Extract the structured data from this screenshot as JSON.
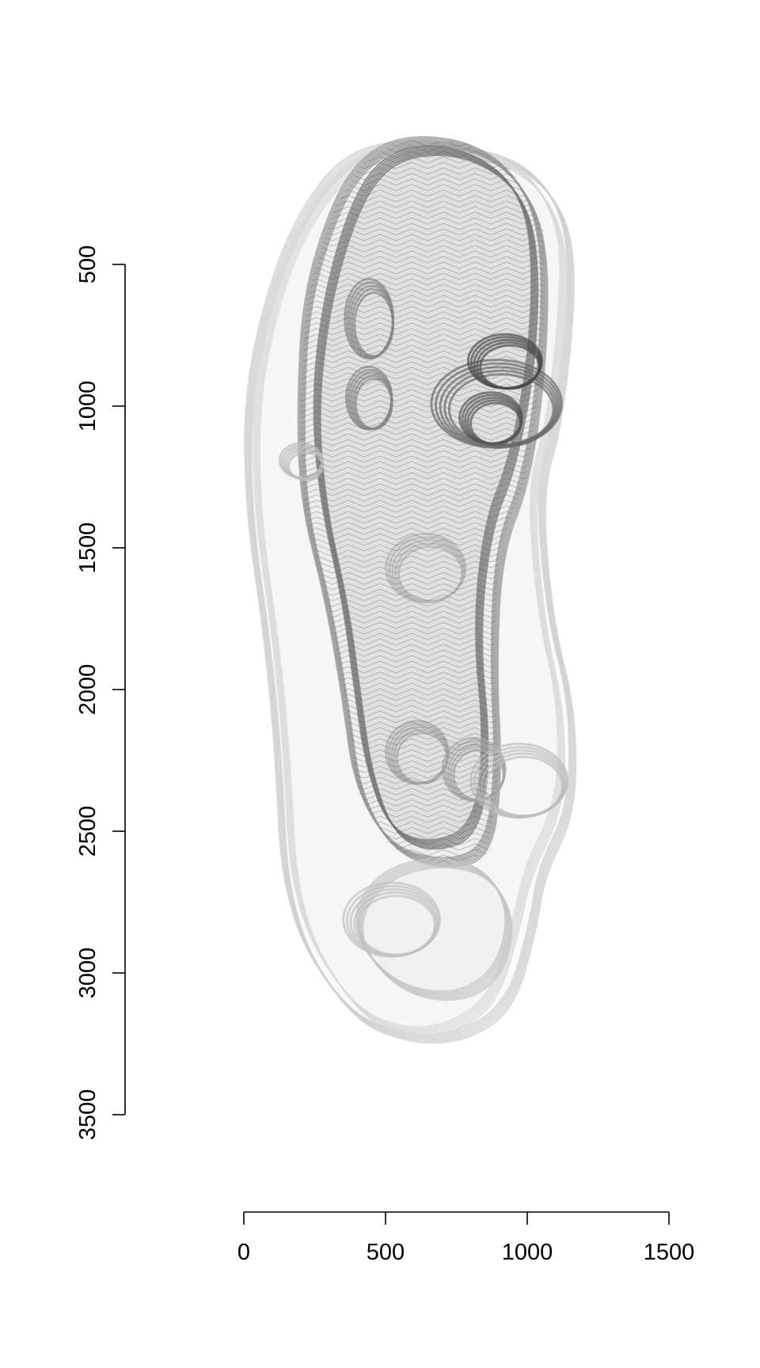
{
  "chart_data": {
    "type": "scatter",
    "title": "",
    "xlabel": "",
    "ylabel": "",
    "xlim": [
      0,
      1500
    ],
    "ylim": [
      500,
      3500
    ],
    "y_reversed": true,
    "grid": false,
    "x_ticks": [
      0,
      500,
      1000,
      1500
    ],
    "y_ticks": [
      500,
      1000,
      1500,
      2000,
      2500,
      3000,
      3500
    ],
    "x_tick_labels": [
      "0",
      "500",
      "1000",
      "1500"
    ],
    "y_tick_labels": [
      "500",
      "1000",
      "1500",
      "2000",
      "2500",
      "3000",
      "3500"
    ],
    "point_colors": [
      "#1a1a1a",
      "#5a5a5a",
      "#a0a0a0",
      "#d4d4d4"
    ],
    "overlay_shapes": [
      {
        "kind": "outline",
        "color": "#cfcfcf",
        "points": [
          [
            590,
            70
          ],
          [
            760,
            90
          ],
          [
            1000,
            150
          ],
          [
            1140,
            330
          ],
          [
            1160,
            600
          ],
          [
            1110,
            1060
          ],
          [
            1040,
            1290
          ],
          [
            1080,
            1750
          ],
          [
            1160,
            2060
          ],
          [
            1160,
            2420
          ],
          [
            1050,
            2640
          ],
          [
            1020,
            2840
          ],
          [
            940,
            3120
          ],
          [
            760,
            3230
          ],
          [
            560,
            3230
          ],
          [
            360,
            3140
          ],
          [
            150,
            2790
          ],
          [
            120,
            2200
          ],
          [
            80,
            1800
          ],
          [
            20,
            1400
          ],
          [
            10,
            1000
          ],
          [
            80,
            650
          ],
          [
            190,
            350
          ],
          [
            360,
            120
          ]
        ]
      },
      {
        "kind": "outline",
        "color": "#d9d9d9",
        "points": [
          [
            600,
            90
          ],
          [
            800,
            100
          ],
          [
            1000,
            170
          ],
          [
            1120,
            360
          ],
          [
            1130,
            620
          ],
          [
            1080,
            1080
          ],
          [
            1010,
            1300
          ],
          [
            1050,
            1760
          ],
          [
            1120,
            2060
          ],
          [
            1120,
            2400
          ],
          [
            1000,
            2640
          ],
          [
            960,
            2840
          ],
          [
            880,
            3100
          ],
          [
            720,
            3200
          ],
          [
            560,
            3210
          ],
          [
            380,
            3120
          ],
          [
            180,
            2780
          ],
          [
            150,
            2200
          ],
          [
            110,
            1800
          ],
          [
            50,
            1400
          ],
          [
            40,
            1000
          ],
          [
            100,
            660
          ],
          [
            210,
            360
          ],
          [
            380,
            140
          ]
        ]
      },
      {
        "kind": "outline",
        "color": "#9a9a9a",
        "points": [
          [
            560,
            60
          ],
          [
            780,
            70
          ],
          [
            950,
            170
          ],
          [
            1060,
            380
          ],
          [
            1060,
            800
          ],
          [
            1000,
            1250
          ],
          [
            900,
            1500
          ],
          [
            880,
            1900
          ],
          [
            900,
            2300
          ],
          [
            860,
            2580
          ],
          [
            700,
            2620
          ],
          [
            520,
            2560
          ],
          [
            400,
            2350
          ],
          [
            360,
            2050
          ],
          [
            300,
            1700
          ],
          [
            210,
            1350
          ],
          [
            200,
            1000
          ],
          [
            220,
            620
          ],
          [
            320,
            300
          ],
          [
            420,
            140
          ]
        ]
      },
      {
        "kind": "outline",
        "color": "#7a7a7a",
        "points": [
          [
            620,
            90
          ],
          [
            800,
            110
          ],
          [
            960,
            220
          ],
          [
            1030,
            420
          ],
          [
            1020,
            820
          ],
          [
            950,
            1200
          ],
          [
            860,
            1420
          ],
          [
            820,
            1800
          ],
          [
            860,
            2200
          ],
          [
            820,
            2500
          ],
          [
            660,
            2560
          ],
          [
            520,
            2500
          ],
          [
            440,
            2280
          ],
          [
            400,
            2000
          ],
          [
            360,
            1700
          ],
          [
            280,
            1350
          ],
          [
            250,
            1000
          ],
          [
            290,
            640
          ],
          [
            380,
            320
          ],
          [
            480,
            150
          ]
        ]
      },
      {
        "kind": "outline",
        "color": "#c4c4c4",
        "points": [
          [
            680,
            2600
          ],
          [
            860,
            2640
          ],
          [
            950,
            2800
          ],
          [
            900,
            3000
          ],
          [
            760,
            3090
          ],
          [
            560,
            3060
          ],
          [
            420,
            2920
          ],
          [
            400,
            2780
          ],
          [
            500,
            2650
          ]
        ]
      },
      {
        "kind": "ring",
        "color": "#6a6a6a",
        "center": [
          900,
          1000
        ],
        "r": [
          230,
          155
        ]
      },
      {
        "kind": "ring",
        "color": "#4a4a4a",
        "center": [
          930,
          850
        ],
        "r": [
          130,
          95
        ]
      },
      {
        "kind": "ring",
        "color": "#555555",
        "center": [
          880,
          1050
        ],
        "r": [
          110,
          90
        ]
      },
      {
        "kind": "ring",
        "color": "#c2c2c2",
        "center": [
          530,
          2820
        ],
        "r": [
          170,
          130
        ]
      },
      {
        "kind": "ring",
        "color": "#bdbdbd",
        "center": [
          210,
          1200
        ],
        "r": [
          75,
          60
        ]
      },
      {
        "kind": "ring",
        "color": "#8a8a8a",
        "center": [
          450,
          700
        ],
        "r": [
          85,
          140
        ]
      },
      {
        "kind": "ring",
        "color": "#8a8a8a",
        "center": [
          450,
          980
        ],
        "r": [
          80,
          110
        ]
      },
      {
        "kind": "ring",
        "color": "#a8a8a8",
        "center": [
          620,
          2230
        ],
        "r": [
          110,
          110
        ]
      },
      {
        "kind": "ring",
        "color": "#a8a8a8",
        "center": [
          820,
          2290
        ],
        "r": [
          110,
          110
        ]
      },
      {
        "kind": "ring",
        "color": "#b5b5b5",
        "center": [
          650,
          1580
        ],
        "r": [
          140,
          120
        ]
      },
      {
        "kind": "ring",
        "color": "#bdbdbd",
        "center": [
          980,
          2330
        ],
        "r": [
          170,
          130
        ]
      }
    ]
  }
}
